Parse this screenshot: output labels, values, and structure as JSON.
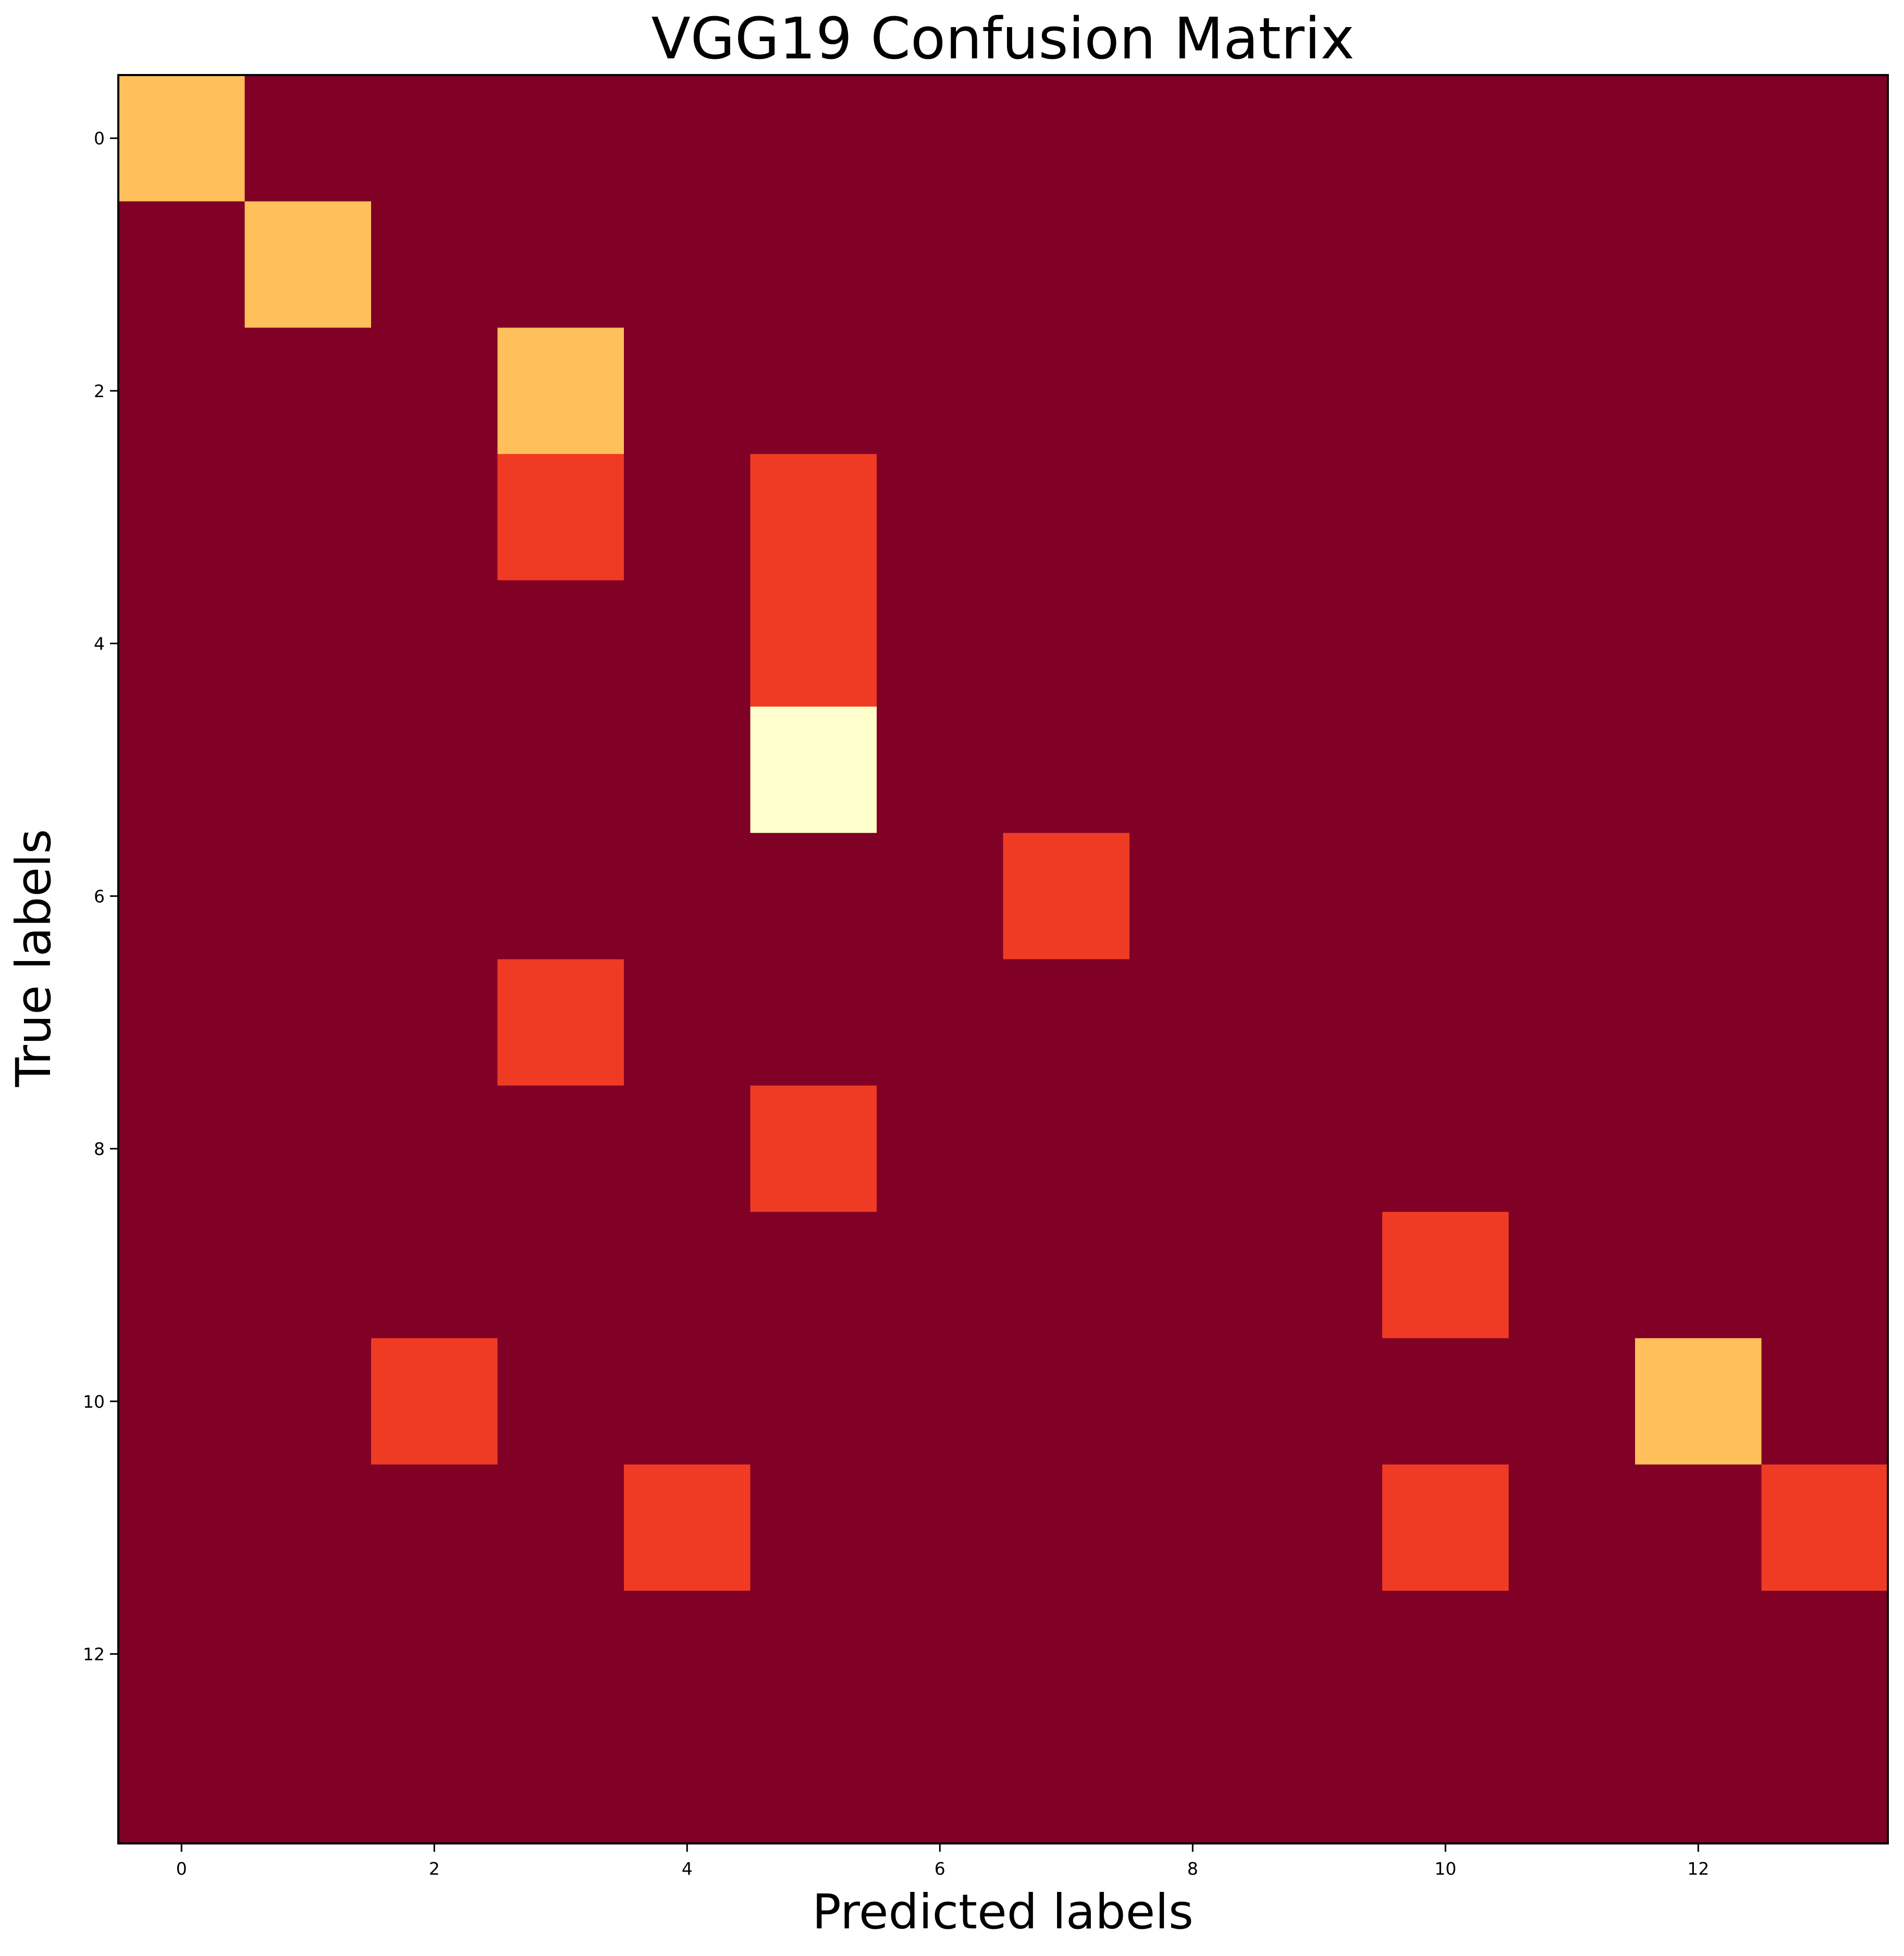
{
  "chart_data": {
    "type": "heatmap",
    "title": "VGG19 Confusion Matrix",
    "xlabel": "Predicted labels",
    "ylabel": "True labels",
    "x_ticks": [
      0,
      2,
      4,
      6,
      8,
      10,
      12
    ],
    "y_ticks": [
      0,
      2,
      4,
      6,
      8,
      10,
      12
    ],
    "colormap": "YlOrRd_r",
    "color_scale": {
      "min": 0,
      "max": 3
    },
    "colors": {
      "low": "#800026",
      "mid": "#f03b24",
      "high": "#ffbf5b",
      "max": "#ffffcc"
    },
    "n_rows": 14,
    "n_cols": 14,
    "matrix": [
      [
        2,
        0,
        0,
        0,
        0,
        0,
        0,
        0,
        0,
        0,
        0,
        0,
        0,
        0
      ],
      [
        0,
        2,
        0,
        0,
        0,
        0,
        0,
        0,
        0,
        0,
        0,
        0,
        0,
        0
      ],
      [
        0,
        0,
        0,
        2,
        0,
        0,
        0,
        0,
        0,
        0,
        0,
        0,
        0,
        0
      ],
      [
        0,
        0,
        0,
        1,
        0,
        1,
        0,
        0,
        0,
        0,
        0,
        0,
        0,
        0
      ],
      [
        0,
        0,
        0,
        0,
        0,
        1,
        0,
        0,
        0,
        0,
        0,
        0,
        0,
        0
      ],
      [
        0,
        0,
        0,
        0,
        0,
        3,
        0,
        0,
        0,
        0,
        0,
        0,
        0,
        0
      ],
      [
        0,
        0,
        0,
        0,
        0,
        0,
        0,
        1,
        0,
        0,
        0,
        0,
        0,
        0
      ],
      [
        0,
        0,
        0,
        1,
        0,
        0,
        0,
        0,
        0,
        0,
        0,
        0,
        0,
        0
      ],
      [
        0,
        0,
        0,
        0,
        0,
        1,
        0,
        0,
        0,
        0,
        0,
        0,
        0,
        0
      ],
      [
        0,
        0,
        0,
        0,
        0,
        0,
        0,
        0,
        0,
        0,
        1,
        0,
        0,
        0
      ],
      [
        0,
        0,
        1,
        0,
        0,
        0,
        0,
        0,
        0,
        0,
        0,
        0,
        2,
        0
      ],
      [
        0,
        0,
        0,
        0,
        1,
        0,
        0,
        0,
        0,
        0,
        1,
        0,
        0,
        1
      ],
      [
        0,
        0,
        0,
        0,
        0,
        0,
        0,
        0,
        0,
        0,
        0,
        0,
        0,
        0
      ],
      [
        0,
        0,
        0,
        0,
        0,
        0,
        0,
        0,
        0,
        0,
        0,
        0,
        0,
        0
      ]
    ]
  }
}
